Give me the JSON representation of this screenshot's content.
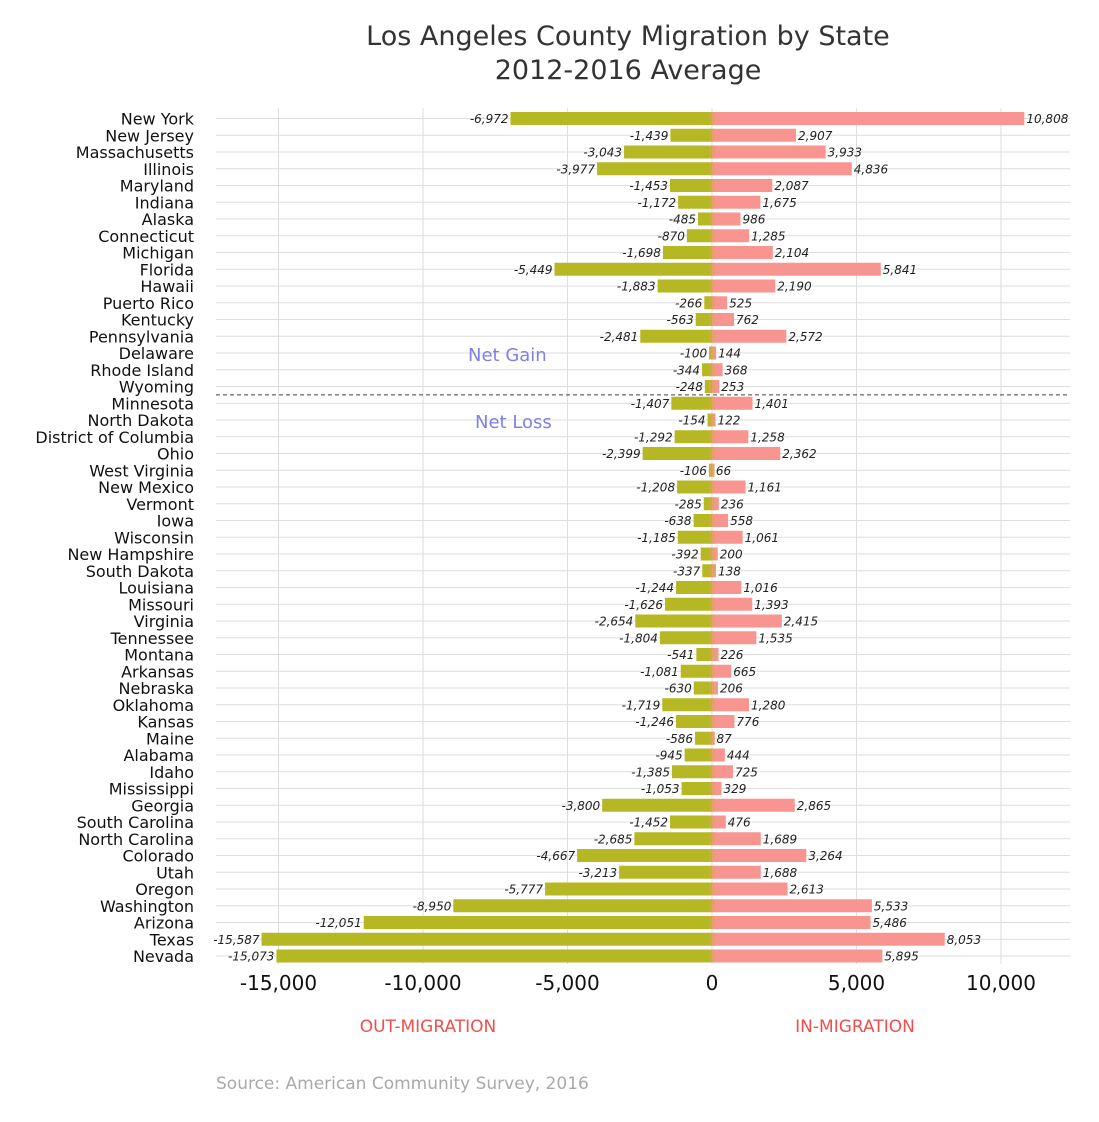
{
  "chart_data": {
    "type": "bar",
    "title": "Los Angeles County Migration by State",
    "subtitle": "2012-2016 Average",
    "categories": [
      "New York",
      "New Jersey",
      "Massachusetts",
      "Illinois",
      "Maryland",
      "Indiana",
      "Alaska",
      "Connecticut",
      "Michigan",
      "Florida",
      "Hawaii",
      "Puerto Rico",
      "Kentucky",
      "Pennsylvania",
      "Delaware",
      "Rhode Island",
      "Wyoming",
      "Minnesota",
      "North Dakota",
      "District of Columbia",
      "Ohio",
      "West Virginia",
      "New Mexico",
      "Vermont",
      "Iowa",
      "Wisconsin",
      "New Hampshire",
      "South Dakota",
      "Louisiana",
      "Missouri",
      "Virginia",
      "Tennessee",
      "Montana",
      "Arkansas",
      "Nebraska",
      "Oklahoma",
      "Kansas",
      "Maine",
      "Alabama",
      "Idaho",
      "Mississippi",
      "Georgia",
      "South Carolina",
      "North Carolina",
      "Colorado",
      "Utah",
      "Oregon",
      "Washington",
      "Arizona",
      "Texas",
      "Nevada"
    ],
    "series": [
      {
        "name": "OUT-MIGRATION",
        "color": "#b5b822",
        "values": [
          -6972,
          -1439,
          -3043,
          -3977,
          -1453,
          -1172,
          -485,
          -870,
          -1698,
          -5449,
          -1883,
          -266,
          -563,
          -2481,
          -100,
          -344,
          -248,
          -1407,
          -154,
          -1292,
          -2399,
          -106,
          -1208,
          -285,
          -638,
          -1185,
          -392,
          -337,
          -1244,
          -1626,
          -2654,
          -1804,
          -541,
          -1081,
          -630,
          -1719,
          -1246,
          -586,
          -945,
          -1385,
          -1053,
          -3800,
          -1452,
          -2685,
          -4667,
          -3213,
          -5777,
          -8950,
          -12051,
          -15587,
          -15073
        ],
        "labels": [
          "-6,972",
          "-1,439",
          "-3,043",
          "-3,977",
          "-1,453",
          "-1,172",
          "-485",
          "-870",
          "-1,698",
          "-5,449",
          "-1,883",
          "-266",
          "-563",
          "-2,481",
          "-100",
          "-344",
          "-248",
          "-1,407",
          "-154",
          "-1,292",
          "-2,399",
          "-106",
          "-1,208",
          "-285",
          "-638",
          "-1,185",
          "-392",
          "-337",
          "-1,244",
          "-1,626",
          "-2,654",
          "-1,804",
          "-541",
          "-1,081",
          "-630",
          "-1,719",
          "-1,246",
          "-586",
          "-945",
          "-1,385",
          "-1,053",
          "-3,800",
          "-1,452",
          "-2,685",
          "-4,667",
          "-3,213",
          "-5,777",
          "-8,950",
          "-12,051",
          "-15,587",
          "-15,073"
        ]
      },
      {
        "name": "IN-MIGRATION",
        "color": "#f99590",
        "values": [
          10808,
          2907,
          3933,
          4836,
          2087,
          1675,
          986,
          1285,
          2104,
          5841,
          2190,
          525,
          762,
          2572,
          144,
          368,
          253,
          1401,
          122,
          1258,
          2362,
          66,
          1161,
          236,
          558,
          1061,
          200,
          138,
          1016,
          1393,
          2415,
          1535,
          226,
          665,
          206,
          1280,
          776,
          87,
          444,
          725,
          329,
          2865,
          476,
          1689,
          3264,
          1688,
          2613,
          5533,
          5486,
          8053,
          5895
        ],
        "labels": [
          "10,808",
          "2,907",
          "3,933",
          "4,836",
          "2,087",
          "1,675",
          "986",
          "1,285",
          "2,104",
          "5,841",
          "2,190",
          "525",
          "762",
          "2,572",
          "144",
          "368",
          "253",
          "1,401",
          "122",
          "1,258",
          "2,362",
          "66",
          "1,161",
          "236",
          "558",
          "1,061",
          "200",
          "138",
          "1,016",
          "1,393",
          "2,415",
          "1,535",
          "226",
          "665",
          "206",
          "1,280",
          "776",
          "87",
          "444",
          "725",
          "329",
          "2,865",
          "476",
          "1,689",
          "3,264",
          "1,688",
          "2,613",
          "5,533",
          "5,486",
          "8,053",
          "5,895"
        ]
      }
    ],
    "xlim": [
      -17000,
      12500
    ],
    "xticks": [
      -15000,
      -10000,
      -5000,
      0,
      5000,
      10000
    ],
    "xtick_labels": [
      "-15,000",
      "-10,000",
      "-5,000",
      "0",
      "5,000",
      "10,000"
    ],
    "grid": true,
    "divider_after_category": "Wyoming",
    "annotations": [
      "Net Gain",
      "Net Loss"
    ],
    "source": "Source: American Community Survey, 2016",
    "colors": {
      "out": "#b5b822",
      "in": "#f99590",
      "overlap": "#d9a656",
      "annotation": "#8080e6",
      "footer": "#f04e4e",
      "grid": "#dedede",
      "divider": "#444444"
    }
  }
}
